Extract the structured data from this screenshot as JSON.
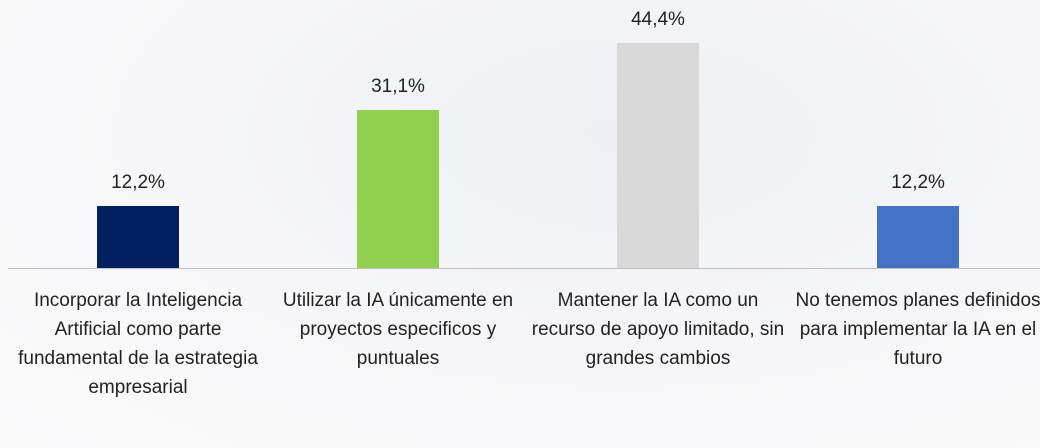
{
  "chart_data": {
    "type": "bar",
    "categories": [
      "Incorporar la Inteligencia Artificial como parte fundamental de la estrategia empresarial",
      "Utilizar la IA únicamente en proyectos especificos y puntuales",
      "Mantener la IA como un recurso de apoyo limitado, sin grandes cambios",
      "No tenemos planes definidos para implementar la IA en el futuro"
    ],
    "values": [
      12.2,
      31.1,
      44.4,
      12.2
    ],
    "value_labels": [
      "12,2%",
      "31,1%",
      "44,4%",
      "12,2%"
    ],
    "colors": [
      "#002060",
      "#92d050",
      "#d9d9d9",
      "#4472c4"
    ]
  }
}
